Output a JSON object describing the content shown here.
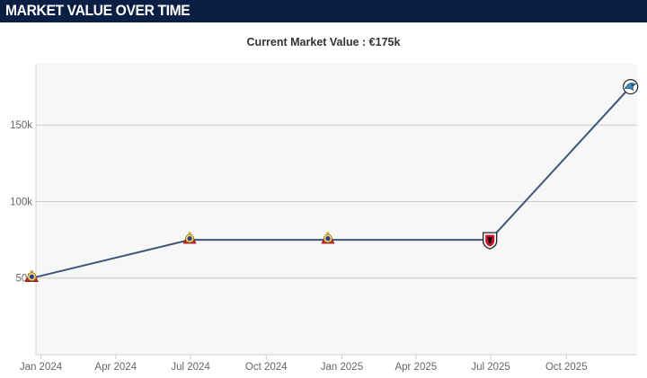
{
  "header": {
    "title": "MARKET VALUE OVER TIME"
  },
  "subtitle": "Current Market Value : €175k",
  "chart_data": {
    "type": "line",
    "title": "",
    "xlabel": "",
    "ylabel": "",
    "x_ticks": [
      "Jan 2024",
      "Apr 2024",
      "Jul 2024",
      "Oct 2024",
      "Jan 2025",
      "Apr 2025",
      "Jul 2025",
      "Oct 2025"
    ],
    "y_ticks": [
      "50k",
      "100k",
      "150k"
    ],
    "xlim": [
      "2023-12-26",
      "2025-12-26"
    ],
    "ylim": [
      0,
      190000
    ],
    "grid": "horizontal",
    "line_color": "#3c5678",
    "series": [
      {
        "points": [
          {
            "x": "2023-12-21",
            "y": 50000,
            "marker": "club-crest-icon"
          },
          {
            "x": "2024-06-30",
            "y": 75000,
            "marker": "club-crest-icon"
          },
          {
            "x": "2024-12-15",
            "y": 75000,
            "marker": "club-crest-icon"
          },
          {
            "x": "2025-06-30",
            "y": 75000,
            "marker": "club-shield-icon"
          },
          {
            "x": "2025-12-18",
            "y": 175000,
            "marker": "club-badge-icon"
          }
        ]
      }
    ]
  }
}
